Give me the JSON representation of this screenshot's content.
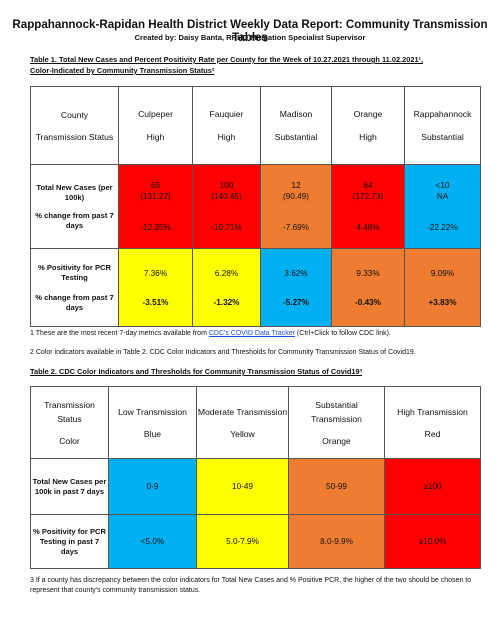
{
  "header": {
    "title": "Rappahannock-Rapidan Health District Weekly Data Report: Community Transmission Tables",
    "subtitle": "Created by: Daisy Banta, RRHD Mitigation Specialist Supervisor"
  },
  "table1": {
    "caption_line1": "Table 1. Total New Cases and Percent Positivity Rate per County for the Week of 10.27.2021 through 11.02.2021¹,",
    "caption_line2": "Color-Indicated by Community Transmission Status²",
    "header_label_top": "County",
    "header_label_bottom": "Transmission Status",
    "row_cases_label": "Total New Cases (per 100k)",
    "row_cases_change_label": "% change from past 7 days",
    "row_pcr_label": "% Positivity for PCR Testing",
    "row_pcr_change_label": "% change from past 7 days",
    "counties": [
      {
        "name": "Culpeper",
        "status": "High",
        "cases": "65",
        "per100k": "(131.27)",
        "cases_change": "-12.35%",
        "pcr": "7.36%",
        "pcr_change": "-3.51%"
      },
      {
        "name": "Fauquier",
        "status": "High",
        "cases": "100",
        "per100k": "(140.45)",
        "cases_change": "-10.71%",
        "pcr": "6.28%",
        "pcr_change": "-1.32%"
      },
      {
        "name": "Madison",
        "status": "Substantial",
        "cases": "12",
        "per100k": "(90.49)",
        "cases_change": "-7.69%",
        "pcr": "3.62%",
        "pcr_change": "-5.27%"
      },
      {
        "name": "Orange",
        "status": "High",
        "cases": "64",
        "per100k": "(172.73)",
        "cases_change": "4.48%",
        "pcr": "9.33%",
        "pcr_change": "-0.43%"
      },
      {
        "name": "Rappahannock",
        "status": "Substantial",
        "cases": "<10",
        "per100k": "NA",
        "cases_change": "-22.22%",
        "pcr": "9.09%",
        "pcr_change": "+3.83%"
      }
    ],
    "colors": {
      "red": "#ff0000",
      "orange": "#ef7d31",
      "blue": "#00b0f0",
      "yellow": "#ffff00"
    }
  },
  "notes": {
    "note1_prefix": "1 These are the most recent 7-day metrics available from ",
    "note1_link": "CDC's COVID Data Tracker",
    "note1_suffix": " (Ctrl+Click to follow CDC link).",
    "note2": "2 Color indicators available in Table 2. CDC Color Indicators and Thresholds for Community Transmission Status of Covid19.",
    "note3": "3 If a county has discrepancy between the color indicators for Total New Cases and % Positive PCR, the higher of the two should be chosen to represent that county's community transmission status."
  },
  "table2": {
    "caption": "Table 2. CDC Color Indicators and Thresholds for Community Transmission Status of Covid19³",
    "header_label_top": "Transmission Status",
    "header_label_bottom": "Color",
    "row_cases_label": "Total New Cases per 100k in past 7 days",
    "row_pcr_label": "% Positivity for PCR Testing in past 7 days",
    "levels": [
      {
        "name": "Low Transmission",
        "color": "Blue",
        "cases": "0-9",
        "pcr": "<5.0%"
      },
      {
        "name": "Moderate Transmission",
        "color": "Yellow",
        "cases": "10-49",
        "pcr": "5.0-7.9%"
      },
      {
        "name": "Substantial Transmission",
        "color": "Orange",
        "cases": "50-99",
        "pcr": "8.0-9.9%"
      },
      {
        "name": "High Transmission",
        "color": "Red",
        "cases": "≥100",
        "pcr": "≥10.0%"
      }
    ]
  }
}
